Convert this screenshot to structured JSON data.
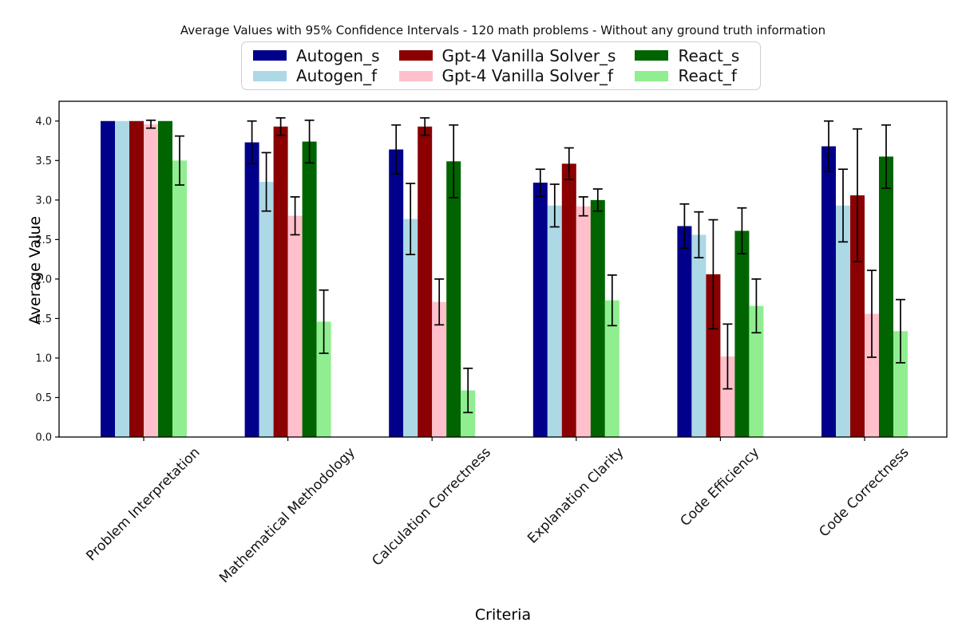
{
  "window": {
    "background": "#ffffff"
  },
  "chart_data": {
    "type": "bar",
    "title": "Average Values with 95% Confidence Intervals - 120 math problems - Without any ground truth information",
    "xlabel": "Criteria",
    "ylabel": "Average Value",
    "ylim": [
      0,
      4.25
    ],
    "ytick_labels": [
      "0.0",
      "0.5",
      "1.0",
      "1.5",
      "2.0",
      "2.5",
      "3.0",
      "3.5",
      "4.0"
    ],
    "grid": false,
    "legend_position": "upper center",
    "legend_columns": 3,
    "error_bar_color": "#000000",
    "categories": [
      "Problem Interpretation",
      "Mathematical Methodology",
      "Calculation Correctness",
      "Explanation Clarity",
      "Code Efficiency",
      "Code Correctness"
    ],
    "series": [
      {
        "name": "Autogen_s",
        "color": "#00008B",
        "values": [
          4.0,
          3.73,
          3.64,
          3.22,
          2.67,
          3.68
        ],
        "ci": [
          0.0,
          0.27,
          0.31,
          0.17,
          0.28,
          0.32
        ]
      },
      {
        "name": "Autogen_f",
        "color": "#ADD8E6",
        "values": [
          4.0,
          3.23,
          2.76,
          2.93,
          2.56,
          2.93
        ],
        "ci": [
          0.0,
          0.37,
          0.45,
          0.27,
          0.29,
          0.46
        ]
      },
      {
        "name": "Gpt-4 Vanilla Solver_s",
        "color": "#8B0000",
        "values": [
          4.0,
          3.93,
          3.93,
          3.46,
          2.06,
          3.06
        ],
        "ci": [
          0.0,
          0.11,
          0.11,
          0.2,
          0.69,
          0.84
        ]
      },
      {
        "name": "Gpt-4 Vanilla Solver_f",
        "color": "#FFC0CB",
        "values": [
          3.96,
          2.8,
          1.71,
          2.92,
          1.02,
          1.56
        ],
        "ci": [
          0.05,
          0.24,
          0.29,
          0.12,
          0.41,
          0.55
        ]
      },
      {
        "name": "React_s",
        "color": "#006400",
        "values": [
          4.0,
          3.74,
          3.49,
          3.0,
          2.61,
          3.55
        ],
        "ci": [
          0.0,
          0.27,
          0.46,
          0.14,
          0.29,
          0.4
        ]
      },
      {
        "name": "React_f",
        "color": "#90EE90",
        "values": [
          3.5,
          1.46,
          0.59,
          1.73,
          1.66,
          1.34
        ],
        "ci": [
          0.31,
          0.4,
          0.28,
          0.32,
          0.34,
          0.4
        ]
      }
    ]
  }
}
